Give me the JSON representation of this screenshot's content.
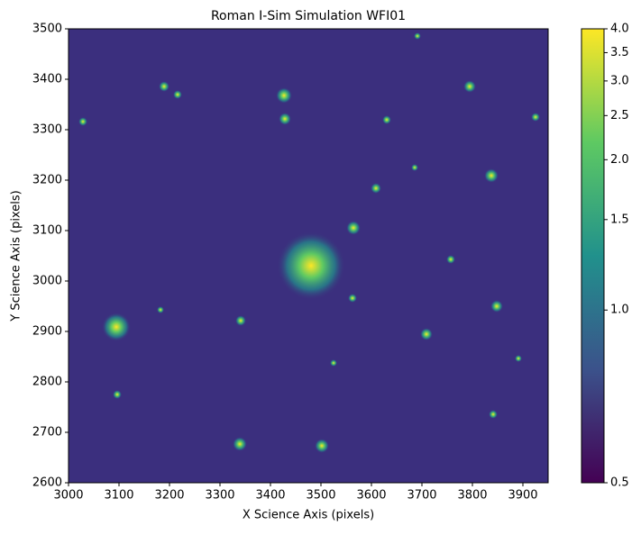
{
  "chart_data": {
    "type": "image",
    "title": "Roman I-Sim Simulation WFI01",
    "x_label": "X Science Axis (pixels)",
    "y_label": "Y Science Axis (pixels)",
    "xlim": [
      3000,
      3950
    ],
    "xticks": [
      3000,
      3100,
      3200,
      3300,
      3400,
      3500,
      3600,
      3700,
      3800,
      3900
    ],
    "ylim": [
      2600,
      3500
    ],
    "yticks": [
      2600,
      2700,
      2800,
      2900,
      3000,
      3100,
      3200,
      3300,
      3400,
      3500
    ],
    "colormap": "viridis",
    "colorbar_scale": "power",
    "colorbar_gamma": -0.2,
    "colorbar_lim": [
      0.5,
      4.0
    ],
    "colorbar_ticks": [
      {
        "value": 0.5,
        "label": "0.5"
      },
      {
        "value": 1.0,
        "label": "1.0"
      },
      {
        "value": 1.5,
        "label": "1.5"
      },
      {
        "value": 2.0,
        "label": "2.0"
      },
      {
        "value": 2.5,
        "label": "2.5"
      },
      {
        "value": 3.0,
        "label": "3.0"
      },
      {
        "value": 3.5,
        "label": "3.5"
      },
      {
        "value": 4.0,
        "label": "4.0"
      }
    ]
  }
}
